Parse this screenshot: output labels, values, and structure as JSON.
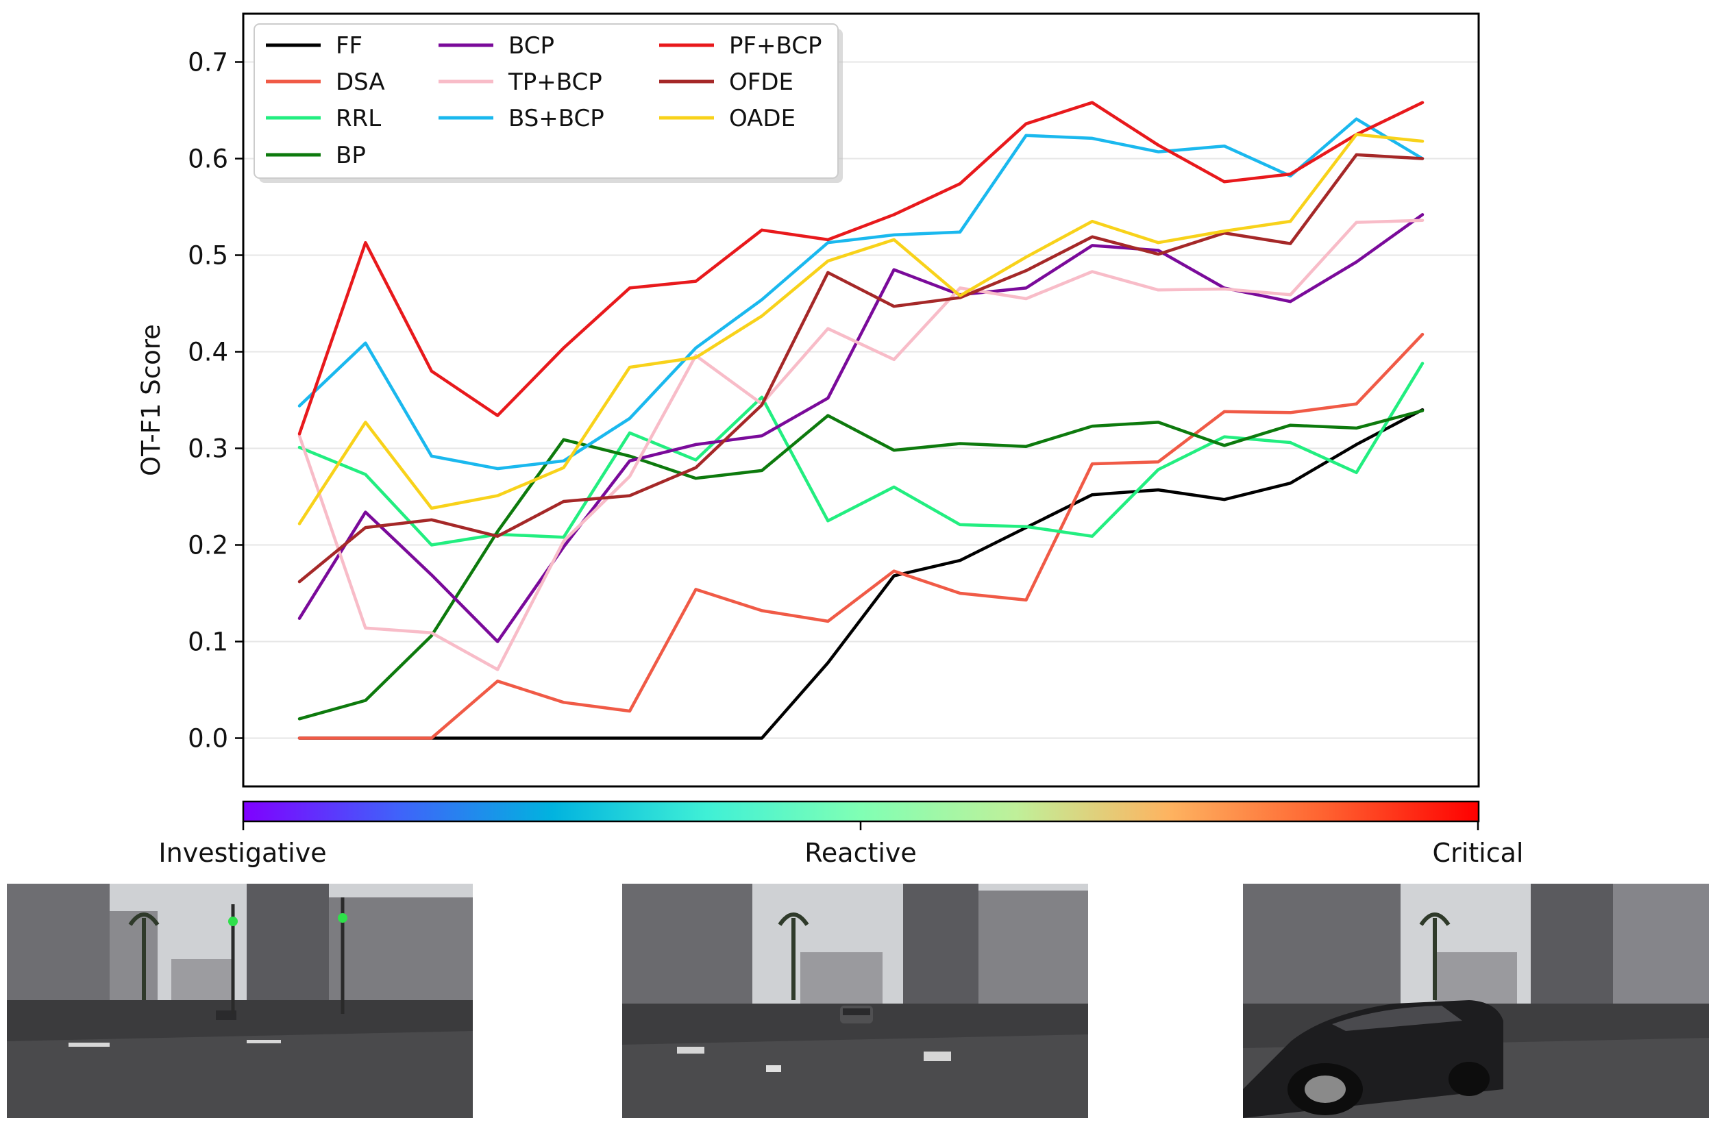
{
  "chart_data": {
    "type": "line",
    "title": "",
    "xlabel": "",
    "ylabel": "OT-F1 Score",
    "x": [
      0,
      1,
      2,
      3,
      4,
      5,
      6,
      7,
      8,
      9,
      10,
      11,
      12,
      13,
      14,
      15,
      16,
      17
    ],
    "xlim": [
      -0.85,
      17.85
    ],
    "ylim": [
      -0.05,
      0.75
    ],
    "yticks": [
      0.0,
      0.1,
      0.2,
      0.3,
      0.4,
      0.5,
      0.6,
      0.7
    ],
    "ytick_labels": [
      "0.0",
      "0.1",
      "0.2",
      "0.3",
      "0.4",
      "0.5",
      "0.6",
      "0.7"
    ],
    "grid": "horizontal",
    "legend_location": "upper-left",
    "series": [
      {
        "name": "FF",
        "color": "#000000",
        "values": [
          0.0,
          0.0,
          0.0,
          0.0,
          0.0,
          0.0,
          0.0,
          0.0,
          0.078,
          0.168,
          0.184,
          0.218,
          0.252,
          0.257,
          0.247,
          0.264,
          0.304,
          0.34
        ]
      },
      {
        "name": "DSA",
        "color": "#f05a46",
        "values": [
          0.0,
          0.0,
          0.0,
          0.059,
          0.037,
          0.028,
          0.154,
          0.132,
          0.121,
          0.173,
          0.15,
          0.143,
          0.284,
          0.286,
          0.338,
          0.337,
          0.346,
          0.418
        ]
      },
      {
        "name": "RRL",
        "color": "#22ee80",
        "values": [
          0.301,
          0.273,
          0.2,
          0.211,
          0.208,
          0.316,
          0.288,
          0.353,
          0.225,
          0.26,
          0.221,
          0.219,
          0.209,
          0.278,
          0.312,
          0.306,
          0.275,
          0.388
        ]
      },
      {
        "name": "BP",
        "color": "#0d7a0d",
        "values": [
          0.02,
          0.039,
          0.106,
          0.214,
          0.309,
          0.292,
          0.269,
          0.277,
          0.334,
          0.298,
          0.305,
          0.302,
          0.323,
          0.327,
          0.303,
          0.324,
          0.321,
          0.339
        ]
      },
      {
        "name": "BCP",
        "color": "#7a0a9a",
        "values": [
          0.124,
          0.234,
          0.169,
          0.1,
          0.198,
          0.287,
          0.304,
          0.313,
          0.352,
          0.485,
          0.459,
          0.466,
          0.51,
          0.505,
          0.466,
          0.452,
          0.493,
          0.542
        ]
      },
      {
        "name": "TP+BCP",
        "color": "#f8bcc8",
        "values": [
          0.313,
          0.114,
          0.109,
          0.071,
          0.204,
          0.271,
          0.396,
          0.346,
          0.424,
          0.392,
          0.466,
          0.455,
          0.483,
          0.464,
          0.465,
          0.459,
          0.534,
          0.536
        ]
      },
      {
        "name": "BS+BCP",
        "color": "#1ab8ee",
        "values": [
          0.344,
          0.409,
          0.292,
          0.279,
          0.287,
          0.331,
          0.404,
          0.454,
          0.513,
          0.521,
          0.524,
          0.624,
          0.621,
          0.607,
          0.613,
          0.582,
          0.641,
          0.6
        ]
      },
      {
        "name": "PF+BCP",
        "color": "#e8191c",
        "values": [
          0.315,
          0.513,
          0.38,
          0.334,
          0.404,
          0.466,
          0.473,
          0.526,
          0.516,
          0.542,
          0.574,
          0.636,
          0.658,
          0.614,
          0.576,
          0.584,
          0.625,
          0.658
        ]
      },
      {
        "name": "OFDE",
        "color": "#a52828",
        "values": [
          0.162,
          0.218,
          0.226,
          0.209,
          0.245,
          0.251,
          0.28,
          0.345,
          0.482,
          0.447,
          0.456,
          0.484,
          0.519,
          0.501,
          0.523,
          0.512,
          0.604,
          0.6
        ]
      },
      {
        "name": "OADE",
        "color": "#f8d21a",
        "values": [
          0.222,
          0.327,
          0.238,
          0.251,
          0.28,
          0.384,
          0.394,
          0.437,
          0.494,
          0.516,
          0.458,
          0.498,
          0.535,
          0.513,
          0.525,
          0.535,
          0.625,
          0.618
        ]
      }
    ],
    "colorbar": {
      "colormap": "rainbow",
      "labels": [
        "Investigative",
        "Reactive",
        "Critical"
      ]
    }
  },
  "scenes": [
    {
      "name": "investigative",
      "description": "Urban street intersection, traffic lights, distant vehicle"
    },
    {
      "name": "reactive",
      "description": "Urban street, vehicle approaching in lane"
    },
    {
      "name": "critical",
      "description": "Urban street, car cutting in close to the ego vehicle"
    }
  ]
}
